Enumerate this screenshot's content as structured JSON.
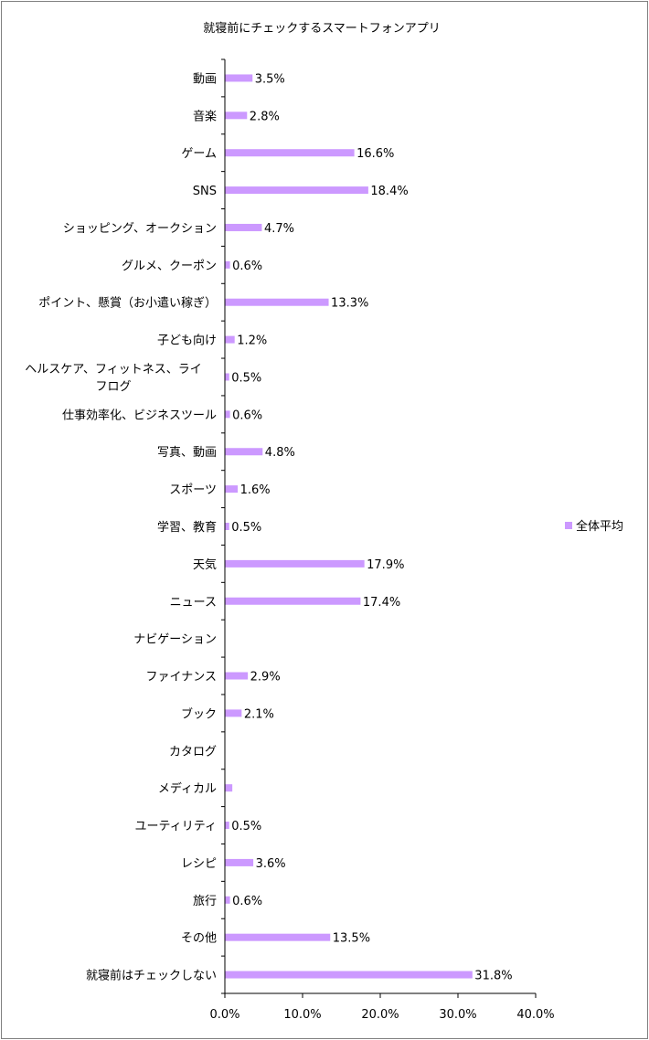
{
  "chart_data": {
    "type": "bar",
    "orientation": "horizontal",
    "title": "就寝前にチェックするスマートフォンアプリ",
    "categories": [
      [
        "動画"
      ],
      [
        "音楽"
      ],
      [
        "ゲーム"
      ],
      [
        "SNS"
      ],
      [
        "ショッピング、オークション"
      ],
      [
        "グルメ、クーポン"
      ],
      [
        "ポイント、懸賞（お小遣い稼ぎ）"
      ],
      [
        "子ども向け"
      ],
      [
        "ヘルスケア、フィットネス、ライ",
        "フログ"
      ],
      [
        "仕事効率化、ビジネスツール"
      ],
      [
        "写真、動画"
      ],
      [
        "スポーツ"
      ],
      [
        "学習、教育"
      ],
      [
        "天気"
      ],
      [
        "ニュース"
      ],
      [
        "ナビゲーション"
      ],
      [
        "ファイナンス"
      ],
      [
        "ブック"
      ],
      [
        "カタログ"
      ],
      [
        "メディカル"
      ],
      [
        "ユーティリティ"
      ],
      [
        "レシピ"
      ],
      [
        "旅行"
      ],
      [
        "その他"
      ],
      [
        "就寝前はチェックしない"
      ]
    ],
    "series": [
      {
        "name": "全体平均",
        "color": "#cc99ff",
        "values": [
          3.5,
          2.8,
          16.6,
          18.4,
          4.7,
          0.6,
          13.3,
          1.2,
          0.5,
          0.6,
          4.8,
          1.6,
          0.5,
          17.9,
          17.4,
          0.0,
          2.9,
          2.1,
          0.0,
          0.9,
          0.5,
          3.6,
          0.6,
          13.5,
          31.8
        ],
        "labels": [
          "3.5%",
          "2.8%",
          "16.6%",
          "18.4%",
          "4.7%",
          "0.6%",
          "13.3%",
          "1.2%",
          "0.5%",
          "0.6%",
          "4.8%",
          "1.6%",
          "0.5%",
          "17.9%",
          "17.4%",
          "",
          "2.9%",
          "2.1%",
          "",
          "",
          "0.5%",
          "3.6%",
          "0.6%",
          "13.5%",
          "31.8%"
        ]
      }
    ],
    "xlim": [
      0,
      40
    ],
    "xticks": [
      "0.0%",
      "10.0%",
      "20.0%",
      "30.0%",
      "40.0%"
    ],
    "xtick_values": [
      0,
      10,
      20,
      30,
      40
    ],
    "grid": false,
    "legend_position": "right"
  }
}
